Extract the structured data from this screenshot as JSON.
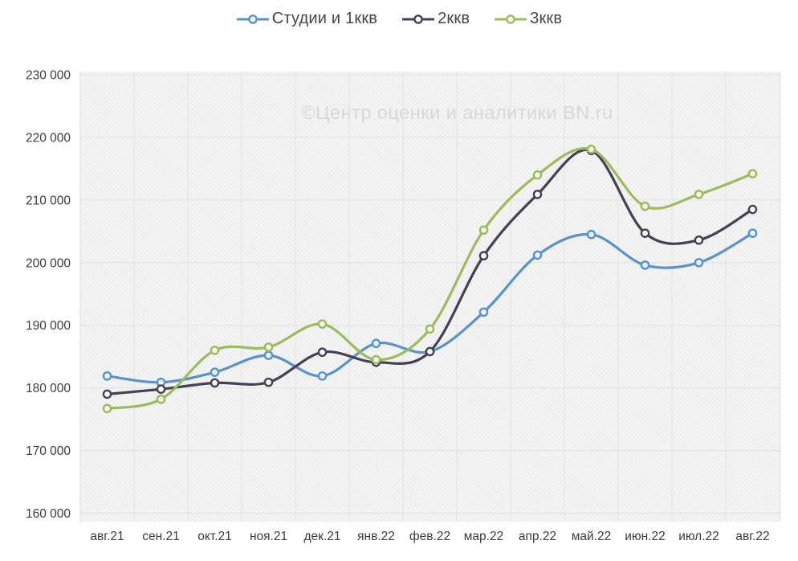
{
  "watermark": "©Центр оценки и аналитики BN.ru",
  "colors": {
    "grid": "#e2e2e2",
    "plot_bg": "#f1f1f1",
    "axis_text": "#3c3c3c",
    "legend_text": "#44444e",
    "watermark_color": "#d8d8d8"
  },
  "chart_data": {
    "type": "line",
    "smooth": true,
    "grid": true,
    "legend_position": "top",
    "title": "",
    "xlabel": "",
    "ylabel": "",
    "ylim": [
      160000,
      230000
    ],
    "ytick_step": 10000,
    "categories": [
      "авг.21",
      "сен.21",
      "окт.21",
      "ноя.21",
      "дек.21",
      "янв.22",
      "фев.22",
      "мар.22",
      "апр.22",
      "май.22",
      "июн.22",
      "июл.22",
      "авг.22"
    ],
    "series": [
      {
        "name": "Студии и 1ккв",
        "color": "#5893ce",
        "marker_fill": "#eaf2fb",
        "values": [
          181900,
          180900,
          182500,
          185200,
          181900,
          187100,
          185800,
          192100,
          201200,
          204500,
          199600,
          200000,
          204700
        ]
      },
      {
        "name": "2ккв",
        "color": "#454055",
        "marker_fill": "#ffffff",
        "values": [
          179000,
          179800,
          180800,
          180900,
          185700,
          184100,
          185800,
          201100,
          210900,
          217900,
          204700,
          203600,
          208500
        ]
      },
      {
        "name": "3ккв",
        "color": "#9cbb5f",
        "marker_fill": "#f3f6e6",
        "values": [
          176700,
          178200,
          186000,
          186500,
          190200,
          184500,
          189400,
          205200,
          214000,
          218100,
          209000,
          210900,
          214200
        ]
      }
    ]
  }
}
